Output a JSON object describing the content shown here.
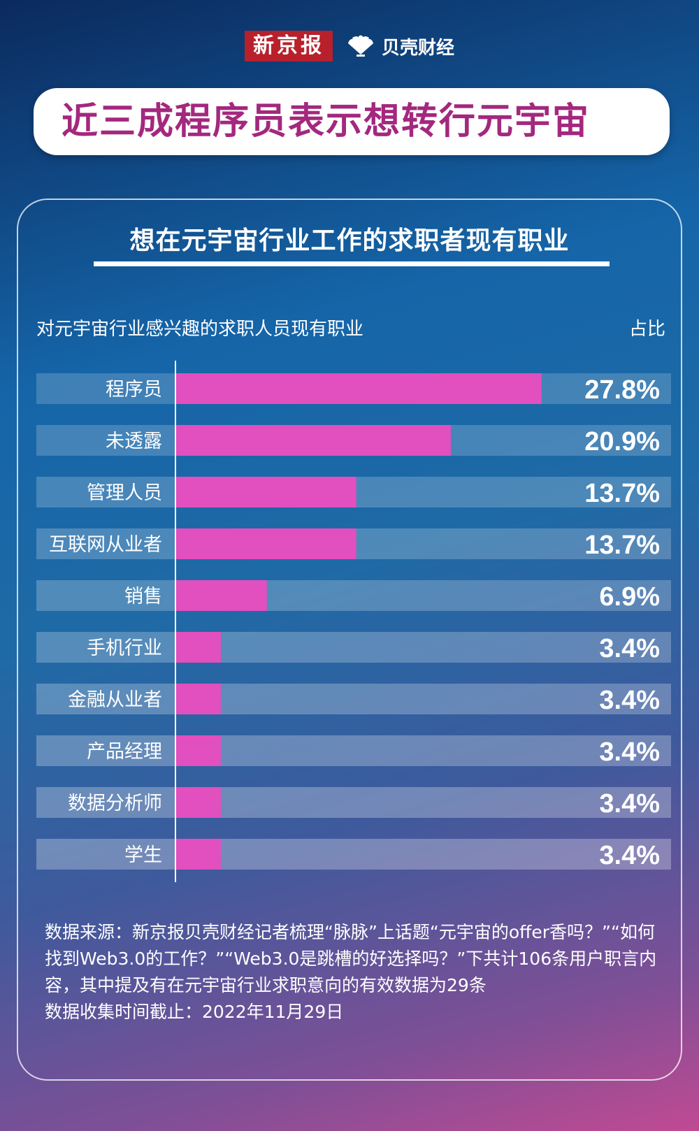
{
  "brand": {
    "xinjingbao": "新京报",
    "beike": "贝壳财经"
  },
  "title": "近三成程序员表示想转行元宇宙",
  "subtitle": "想在元宇宙行业工作的求职者现有职业",
  "header": {
    "left": "对元宇宙行业感兴趣的求职人员现有职业",
    "right": "占比"
  },
  "chart_data": {
    "type": "bar",
    "orientation": "horizontal",
    "categories": [
      "程序员",
      "未透露",
      "管理人员",
      "互联网从业者",
      "销售",
      "手机行业",
      "金融从业者",
      "产品经理",
      "数据分析师",
      "学生"
    ],
    "values": [
      27.8,
      20.9,
      13.7,
      13.7,
      6.9,
      3.4,
      3.4,
      3.4,
      3.4,
      3.4
    ],
    "value_labels": [
      "27.8%",
      "20.9%",
      "13.7%",
      "13.7%",
      "6.9%",
      "3.4%",
      "3.4%",
      "3.4%",
      "3.4%",
      "3.4%"
    ],
    "xlim": [
      0,
      50
    ],
    "grid": false,
    "colors": {
      "bar": "#e24fbe",
      "track": "rgba(120,170,215,0.45)"
    }
  },
  "source": {
    "lines": [
      "数据来源：新京报贝壳财经记者梳理“脉脉”上话题“元宇宙的offer香吗？”“如何找到Web3.0的工作？”“Web3.0是跳槽的好选择吗？”下共计106条用户职言内容，其中提及有在元宇宙行业求职意向的有效数据为29条",
      "数据收集时间截止：2022年11月29日"
    ]
  }
}
